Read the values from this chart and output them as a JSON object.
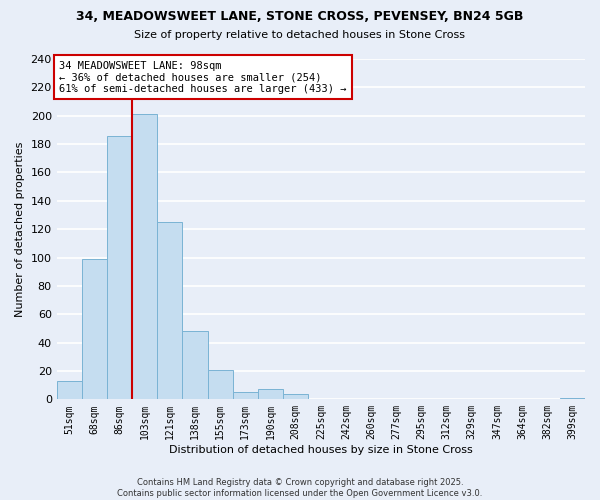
{
  "title": "34, MEADOWSWEET LANE, STONE CROSS, PEVENSEY, BN24 5GB",
  "subtitle": "Size of property relative to detached houses in Stone Cross",
  "xlabel": "Distribution of detached houses by size in Stone Cross",
  "ylabel": "Number of detached properties",
  "bar_color": "#c5ddf0",
  "bar_edge_color": "#7ab3d4",
  "background_color": "#e8eef8",
  "grid_color": "#ffffff",
  "categories": [
    "51sqm",
    "68sqm",
    "86sqm",
    "103sqm",
    "121sqm",
    "138sqm",
    "155sqm",
    "173sqm",
    "190sqm",
    "208sqm",
    "225sqm",
    "242sqm",
    "260sqm",
    "277sqm",
    "295sqm",
    "312sqm",
    "329sqm",
    "347sqm",
    "364sqm",
    "382sqm",
    "399sqm"
  ],
  "values": [
    13,
    99,
    186,
    201,
    125,
    48,
    21,
    5,
    7,
    4,
    0,
    0,
    0,
    0,
    0,
    0,
    0,
    0,
    0,
    0,
    1
  ],
  "ylim": [
    0,
    240
  ],
  "yticks": [
    0,
    20,
    40,
    60,
    80,
    100,
    120,
    140,
    160,
    180,
    200,
    220,
    240
  ],
  "vline_x": 2.5,
  "vline_color": "#cc0000",
  "ann_line1": "34 MEADOWSWEET LANE: 98sqm",
  "ann_line2": "← 36% of detached houses are smaller (254)",
  "ann_line3": "61% of semi-detached houses are larger (433) →",
  "footer_line1": "Contains HM Land Registry data © Crown copyright and database right 2025.",
  "footer_line2": "Contains public sector information licensed under the Open Government Licence v3.0.",
  "figsize": [
    6.0,
    5.0
  ],
  "dpi": 100
}
